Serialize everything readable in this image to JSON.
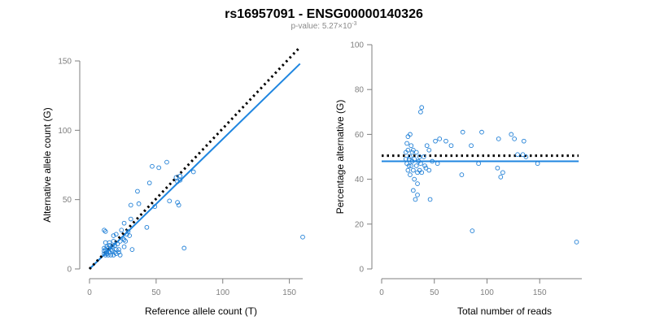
{
  "figure": {
    "title": "rs16957091 - ENSG00000140326",
    "subtitle_prefix": "p-value: 5.27×10",
    "subtitle_exponent": "-3"
  },
  "colors": {
    "points": "#1f7fd6",
    "fit_line": "#1f86e0",
    "reference_line": "#000000",
    "axis": "#7f7f7f"
  },
  "chart_data": [
    {
      "type": "scatter",
      "xlabel": "Reference allele count (T)",
      "ylabel": "Alternative allele count (G)",
      "xlim": [
        0,
        160
      ],
      "ylim": [
        0,
        150
      ],
      "xticks": [
        0,
        50,
        100,
        150
      ],
      "yticks": [
        0,
        50,
        100,
        150
      ],
      "grid": false,
      "lines": [
        {
          "kind": "fit",
          "style": "solid",
          "x": [
            0,
            158
          ],
          "y": [
            0,
            148
          ]
        },
        {
          "kind": "reference",
          "style": "dotted",
          "x": [
            0,
            158
          ],
          "y": [
            0,
            160
          ]
        }
      ],
      "points": [
        [
          160,
          23
        ],
        [
          71,
          15
        ],
        [
          78,
          70
        ],
        [
          58,
          77
        ],
        [
          47,
          74
        ],
        [
          52,
          73
        ],
        [
          65,
          66
        ],
        [
          66,
          63
        ],
        [
          68,
          67
        ],
        [
          68,
          64
        ],
        [
          60,
          49
        ],
        [
          66,
          48
        ],
        [
          67,
          46
        ],
        [
          45,
          62
        ],
        [
          49,
          45
        ],
        [
          43,
          30
        ],
        [
          37,
          47
        ],
        [
          36,
          56
        ],
        [
          31,
          46
        ],
        [
          31,
          36
        ],
        [
          29,
          27
        ],
        [
          30,
          24
        ],
        [
          26,
          33
        ],
        [
          24,
          28
        ],
        [
          27,
          20
        ],
        [
          26,
          16
        ],
        [
          28,
          25
        ],
        [
          25,
          22
        ],
        [
          23,
          20
        ],
        [
          20,
          25
        ],
        [
          21,
          18
        ],
        [
          18,
          24
        ],
        [
          22,
          14
        ],
        [
          32,
          14
        ],
        [
          22,
          12
        ],
        [
          18,
          10
        ],
        [
          23,
          10
        ],
        [
          20,
          11
        ],
        [
          19,
          12
        ],
        [
          19,
          17
        ],
        [
          17,
          16
        ],
        [
          17,
          13
        ],
        [
          15,
          17
        ],
        [
          15,
          19
        ],
        [
          16,
          14
        ],
        [
          14,
          15
        ],
        [
          13,
          16
        ],
        [
          13,
          12
        ],
        [
          12,
          14
        ],
        [
          12,
          10
        ],
        [
          11,
          13
        ],
        [
          11,
          15
        ],
        [
          11,
          11
        ],
        [
          12,
          27
        ],
        [
          11,
          28
        ],
        [
          12,
          19
        ],
        [
          16,
          10
        ],
        [
          14,
          10
        ],
        [
          15,
          12
        ],
        [
          20,
          14
        ],
        [
          26,
          21
        ],
        [
          13,
          11
        ],
        [
          18,
          20
        ]
      ]
    },
    {
      "type": "scatter",
      "xlabel": "Total number of reads",
      "ylabel": "Percentage alternative (G)",
      "xlim": [
        0,
        190
      ],
      "ylim": [
        0,
        100
      ],
      "xticks": [
        0,
        50,
        100,
        150
      ],
      "yticks": [
        0,
        20,
        40,
        60,
        80,
        100
      ],
      "grid": false,
      "lines": [
        {
          "kind": "fit",
          "style": "solid",
          "x": [
            0,
            187
          ],
          "y": [
            48,
            48
          ]
        },
        {
          "kind": "reference",
          "style": "dotted",
          "x": [
            0,
            187
          ],
          "y": [
            50.5,
            50.5
          ]
        }
      ],
      "points": [
        [
          185,
          12
        ],
        [
          86,
          17
        ],
        [
          38,
          72
        ],
        [
          37,
          70
        ],
        [
          46,
          31
        ],
        [
          34,
          33
        ],
        [
          32,
          31
        ],
        [
          95,
          61
        ],
        [
          77,
          61
        ],
        [
          123,
          60
        ],
        [
          126,
          58
        ],
        [
          111,
          58
        ],
        [
          61,
          57
        ],
        [
          135,
          57
        ],
        [
          55,
          58
        ],
        [
          51,
          57
        ],
        [
          85,
          55
        ],
        [
          66,
          55
        ],
        [
          43,
          55
        ],
        [
          45,
          53
        ],
        [
          110,
          45
        ],
        [
          115,
          43
        ],
        [
          113,
          41
        ],
        [
          76,
          42
        ],
        [
          92,
          47
        ],
        [
          148,
          47
        ],
        [
          134,
          51
        ],
        [
          129,
          51
        ],
        [
          137,
          50
        ],
        [
          25,
          59
        ],
        [
          27,
          60
        ],
        [
          24,
          56
        ],
        [
          28,
          55
        ],
        [
          25,
          53
        ],
        [
          23,
          52
        ],
        [
          30,
          53
        ],
        [
          26,
          49
        ],
        [
          28,
          46
        ],
        [
          30,
          44
        ],
        [
          31,
          40
        ],
        [
          30,
          35
        ],
        [
          33,
          46
        ],
        [
          34,
          43
        ],
        [
          36,
          44
        ],
        [
          38,
          43
        ],
        [
          27,
          50
        ],
        [
          24,
          47
        ],
        [
          26,
          46
        ],
        [
          29,
          48
        ],
        [
          31,
          49
        ],
        [
          35,
          48
        ],
        [
          37,
          47
        ],
        [
          40,
          50
        ],
        [
          41,
          46
        ],
        [
          42,
          45
        ],
        [
          48,
          48
        ],
        [
          53,
          47
        ],
        [
          33,
          52
        ],
        [
          25,
          44
        ],
        [
          27,
          42
        ],
        [
          36,
          50
        ],
        [
          45,
          44
        ],
        [
          34,
          38
        ],
        [
          23,
          49
        ],
        [
          29,
          52
        ]
      ]
    }
  ]
}
